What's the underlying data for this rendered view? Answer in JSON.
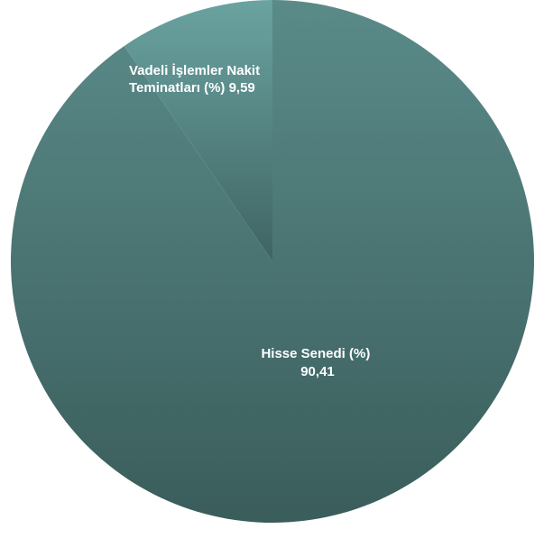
{
  "chart_data": {
    "type": "pie",
    "start_angle": "12 o'clock",
    "direction": "clockwise",
    "slices": [
      {
        "label_line1": "Hisse Senedi (%)",
        "label_line2": "90,41",
        "value": 90.41,
        "color_top": "#5a8b89",
        "color_bottom": "#3a5d5b"
      },
      {
        "label_line1": "Vadeli İşlemler Nakit",
        "label_line2": "Teminatları (%) 9,59",
        "value": 9.59,
        "color_top": "#6aa3a1",
        "color_bottom": "#3f6462"
      }
    ]
  }
}
